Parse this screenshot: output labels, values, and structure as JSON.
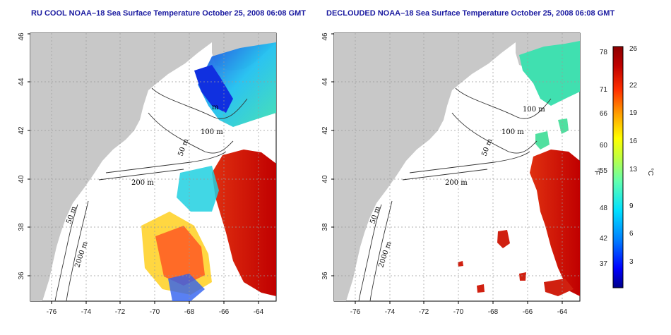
{
  "titles": {
    "left": "RU COOL NOAA–18 Sea Surface Temperature October 25, 2008 06:08 GMT",
    "right": "DECLOUDED NOAA–18 Sea Surface Temperature October 25, 2008 06:08 GMT"
  },
  "map": {
    "lon_ticks": [
      "-76",
      "-74",
      "-72",
      "-70",
      "-68",
      "-66",
      "-64"
    ],
    "lat_ticks": [
      "36",
      "38",
      "40",
      "42",
      "44",
      "46"
    ],
    "contour_labels": [
      "100 m",
      "50 m",
      "200 m",
      "50 m",
      "2000 m"
    ],
    "colors": {
      "land": "#c8c8c8",
      "ocean": "#ffffff",
      "contour": "#333333"
    }
  },
  "colorbar": {
    "fahrenheit_unit": "°F",
    "celsius_unit": "°C",
    "fahrenheit_ticks": [
      "78",
      "71",
      "66",
      "60",
      "55",
      "48",
      "42",
      "37"
    ],
    "celsius_ticks": [
      "26",
      "22",
      "19",
      "16",
      "13",
      "9",
      "6",
      "3"
    ],
    "gradient": [
      "#00008b",
      "#0000ff",
      "#0080ff",
      "#00e0ff",
      "#60ffb0",
      "#c0ff40",
      "#ffff00",
      "#ffa000",
      "#ff3000",
      "#c00000",
      "#8b0000"
    ]
  }
}
